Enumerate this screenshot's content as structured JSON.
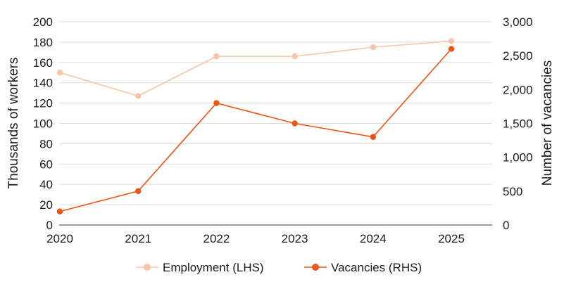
{
  "chart_data": {
    "type": "line",
    "categories": [
      "2020",
      "2021",
      "2022",
      "2023",
      "2024",
      "2025"
    ],
    "series": [
      {
        "name": "Employment (LHS)",
        "axis": "left",
        "color": "#f8c5a6",
        "values": [
          150,
          127,
          166,
          166,
          175,
          181
        ]
      },
      {
        "name": "Vacancies (RHS)",
        "axis": "right",
        "color": "#ee5413",
        "values": [
          200,
          500,
          1800,
          1500,
          1300,
          2600
        ]
      }
    ],
    "ylabel": "Thousands of workers",
    "y2label": "Number of vacancies",
    "ylim": [
      0,
      200
    ],
    "y2lim": [
      0,
      3000
    ],
    "yticks": [
      "0",
      "20",
      "40",
      "60",
      "80",
      "100",
      "120",
      "140",
      "160",
      "180",
      "200"
    ],
    "y2ticks": [
      "0",
      "500",
      "1,000",
      "1,500",
      "2,000",
      "2,500",
      "3,000"
    ],
    "grid": true,
    "legend_position": "bottom"
  }
}
